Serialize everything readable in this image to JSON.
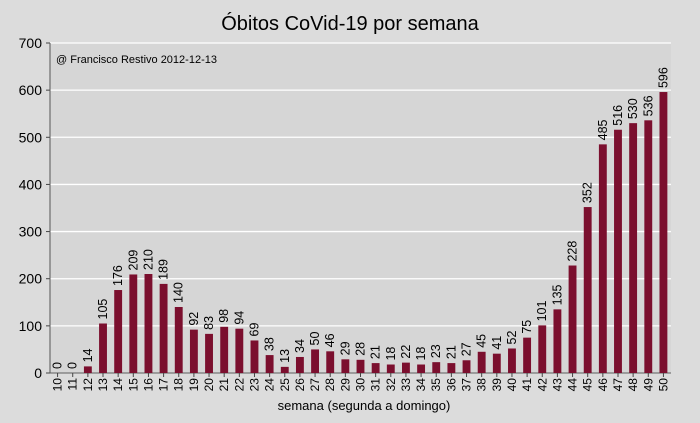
{
  "chart_data": {
    "type": "bar",
    "title": "Óbitos CoVid-19 por semana",
    "xlabel": "semana (segunda a domingo)",
    "ylabel": "",
    "annotation": "@ Francisco Restivo 2012-12-13",
    "ylim": [
      0,
      700
    ],
    "yticks": [
      0,
      100,
      200,
      300,
      400,
      500,
      600,
      700
    ],
    "grid": true,
    "legend": "none",
    "bar_color": "#7b0f2e",
    "categories": [
      "10",
      "11",
      "12",
      "13",
      "14",
      "15",
      "16",
      "17",
      "18",
      "19",
      "20",
      "21",
      "22",
      "23",
      "24",
      "25",
      "26",
      "27",
      "28",
      "29",
      "30",
      "31",
      "32",
      "33",
      "34",
      "35",
      "36",
      "37",
      "38",
      "39",
      "40",
      "41",
      "42",
      "43",
      "44",
      "45",
      "46",
      "47",
      "48",
      "49",
      "50"
    ],
    "values": [
      0,
      0,
      14,
      105,
      176,
      209,
      210,
      189,
      140,
      92,
      83,
      98,
      94,
      69,
      38,
      13,
      34,
      50,
      46,
      29,
      28,
      21,
      18,
      22,
      18,
      23,
      21,
      27,
      45,
      41,
      52,
      75,
      101,
      135,
      228,
      352,
      485,
      516,
      530,
      536,
      596
    ]
  }
}
